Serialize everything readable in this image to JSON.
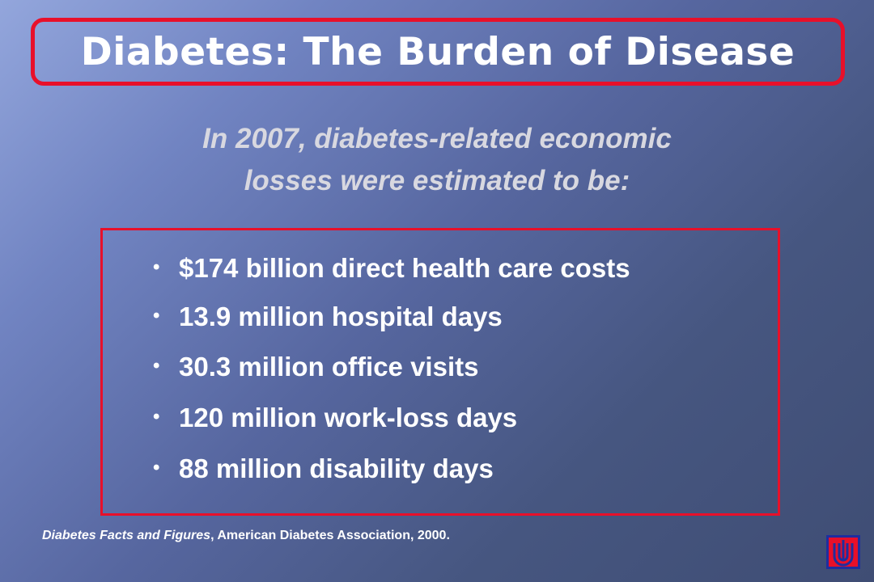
{
  "slide": {
    "title": "Diabetes: The Burden of Disease",
    "subtitle_line1": "In 2007, diabetes-related economic",
    "subtitle_line2": "losses were estimated to be:",
    "bullets": [
      "$174 billion direct health care costs",
      "13.9 million hospital days",
      "30.3 million office visits",
      "120 million work-loss days",
      "88 million disability days"
    ],
    "citation_title": "Diabetes Facts and Figures",
    "citation_rest": ", American Diabetes Association, 2000."
  },
  "logo": {
    "icon": "organization-logo-icon"
  },
  "colors": {
    "accent_border": "#e8102a",
    "title_text": "#ffffff",
    "subtitle_text": "#d8d8e0",
    "logo_blue": "#1f2e9e",
    "logo_red": "#e8102a"
  }
}
